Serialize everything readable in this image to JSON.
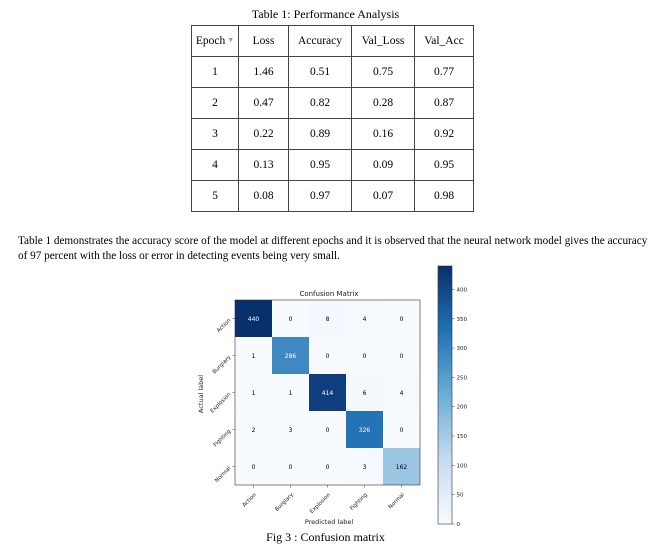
{
  "table": {
    "caption": "Table 1: Performance Analysis",
    "headers": [
      "Epoch",
      "Loss",
      "Accuracy",
      "Val_Loss",
      "Val_Acc"
    ],
    "rows": [
      [
        "1",
        "1.46",
        "0.51",
        "0.75",
        "0.77"
      ],
      [
        "2",
        "0.47",
        "0.82",
        "0.28",
        "0.87"
      ],
      [
        "3",
        "0.22",
        "0.89",
        "0.16",
        "0.92"
      ],
      [
        "4",
        "0.13",
        "0.95",
        "0.09",
        "0.95"
      ],
      [
        "5",
        "0.08",
        "0.97",
        "0.07",
        "0.98"
      ]
    ]
  },
  "paragraph": "Table 1 demonstrates the accuracy score of the model at different epochs and it is observed that the neural network model gives the accuracy of 97 percent with the loss or error in detecting events being very small.",
  "figure_caption": "Fig 3 : Confusion matrix",
  "chart_data": {
    "type": "heatmap",
    "title": "Confusion Matrix",
    "xlabel": "Predicted label",
    "ylabel": "Actual label",
    "x_categories": [
      "Action",
      "Burglary",
      "Explosion",
      "Fighting",
      "Normal"
    ],
    "y_categories": [
      "Action",
      "Burglary",
      "Explosion",
      "Fighting",
      "Normal"
    ],
    "values": [
      [
        440,
        0,
        8,
        4,
        0
      ],
      [
        1,
        286,
        0,
        0,
        0
      ],
      [
        1,
        1,
        414,
        6,
        4
      ],
      [
        2,
        3,
        0,
        326,
        0
      ],
      [
        0,
        0,
        0,
        3,
        162
      ]
    ],
    "colorbar": {
      "min": 0,
      "max": 440,
      "ticks": [
        50,
        100,
        150,
        200,
        250,
        300,
        350,
        400
      ]
    },
    "colors": {
      "low": "#f7fbff",
      "high": "#08306b",
      "text_light": "#ffffff",
      "text_dark": "#000000"
    }
  }
}
